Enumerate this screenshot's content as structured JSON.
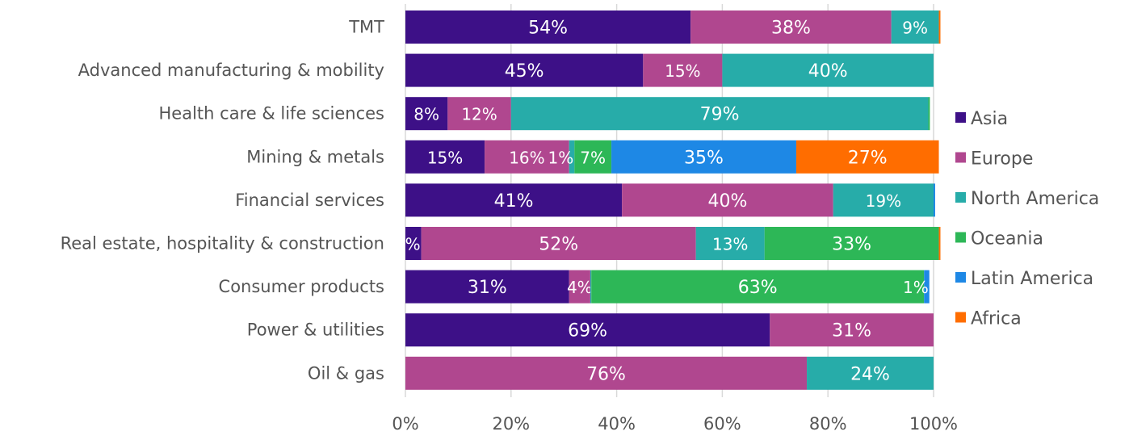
{
  "chart_data": {
    "type": "bar",
    "orientation": "horizontal",
    "stacked": "percent",
    "categories": [
      "TMT",
      "Advanced manufacturing & mobility",
      "Health care & life sciences",
      "Mining & metals",
      "Financial services",
      "Real estate, hospitality & construction",
      "Consumer products",
      "Power & utilities",
      "Oil & gas"
    ],
    "series": [
      {
        "name": "Asia",
        "color": "#3d1087",
        "values": [
          54,
          45,
          8,
          15,
          41,
          3,
          31,
          69,
          0
        ]
      },
      {
        "name": "Europe",
        "color": "#b0478f",
        "values": [
          38,
          15,
          12,
          16,
          40,
          52,
          4,
          31,
          76
        ]
      },
      {
        "name": "North America",
        "color": "#27aca9",
        "values": [
          9,
          40,
          79,
          1,
          19,
          13,
          0.2,
          0,
          24
        ]
      },
      {
        "name": "Oceania",
        "color": "#2db757",
        "values": [
          0,
          0,
          0.3,
          7,
          0,
          33,
          63,
          0,
          0
        ]
      },
      {
        "name": "Latin America",
        "color": "#1e88e5",
        "values": [
          0,
          0,
          0,
          35,
          0.3,
          0,
          1,
          0,
          0
        ]
      },
      {
        "name": "Africa",
        "color": "#ff6d00",
        "values": [
          0.3,
          0,
          0,
          27,
          0,
          0.3,
          0,
          0,
          0
        ]
      }
    ],
    "xlim": [
      0,
      100
    ],
    "xticks": [
      "0%",
      "20%",
      "40%",
      "60%",
      "80%",
      "100%"
    ],
    "grid": true,
    "legend_position": "right",
    "xlabel": "",
    "ylabel": "",
    "title": ""
  }
}
